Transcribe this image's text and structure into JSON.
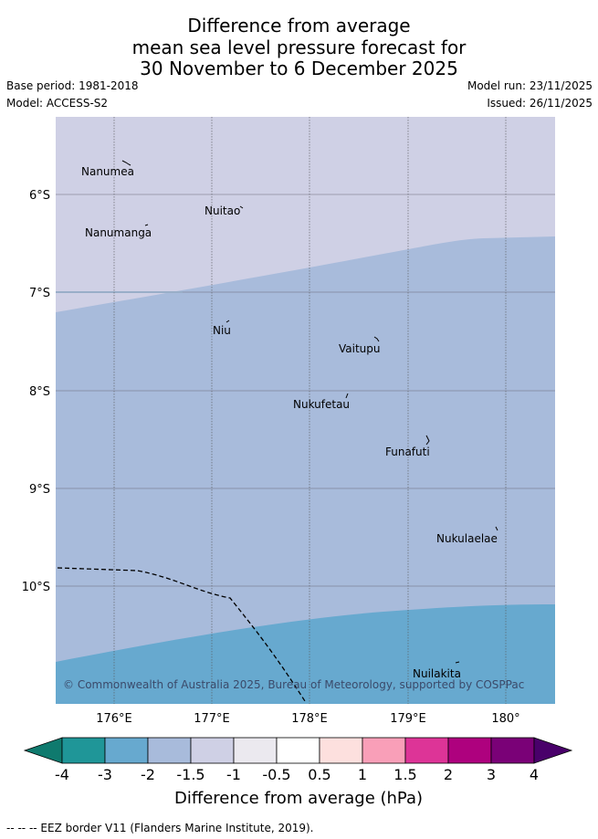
{
  "title": {
    "line1": "Difference from average",
    "line2": "mean sea level pressure forecast for",
    "line3": "30 November to 6 December 2025"
  },
  "meta": {
    "base_period": "Base period: 1981-2018",
    "model": "Model: ACCESS-S2",
    "model_run": "Model run: 23/11/2025",
    "issued": "Issued: 26/11/2025"
  },
  "map": {
    "lon_ticks": [
      "176°E",
      "177°E",
      "178°E",
      "179°E",
      "180°"
    ],
    "lat_ticks": [
      "6°S",
      "7°S",
      "8°S",
      "9°S",
      "10°S"
    ],
    "places": [
      "Nanumea",
      "Nuitao",
      "Nanumanga",
      "Niu",
      "Vaitupu",
      "Nukufetau",
      "Funafuti",
      "Nukulaelae",
      "Nuilakita"
    ],
    "copyright": "© Commonwealth of Australia 2025, Bureau of Meteorology, supported by COSPPac",
    "colors": {
      "band_-1.5_-1": "#cfd0e5",
      "band_-2_-1.5": "#a8bbdb",
      "band_-3_-2": "#67a9cf"
    }
  },
  "colorbar": {
    "ticks": [
      "-4",
      "-3",
      "-2",
      "-1.5",
      "-1",
      "-0.5",
      "0.5",
      "1",
      "1.5",
      "2",
      "3",
      "4"
    ],
    "colors": [
      "#0f7a6e",
      "#1f9698",
      "#67a9cf",
      "#a8bbdb",
      "#cfd0e5",
      "#ebe9ef",
      "#ffffff",
      "#fde0de",
      "#f99fb8",
      "#dd3497",
      "#ae017e",
      "#7a0177",
      "#49006a"
    ],
    "label": "Difference from average (hPa)"
  },
  "footer": "-- -- -- EEZ border V11 (Flanders Marine Institute, 2019)."
}
